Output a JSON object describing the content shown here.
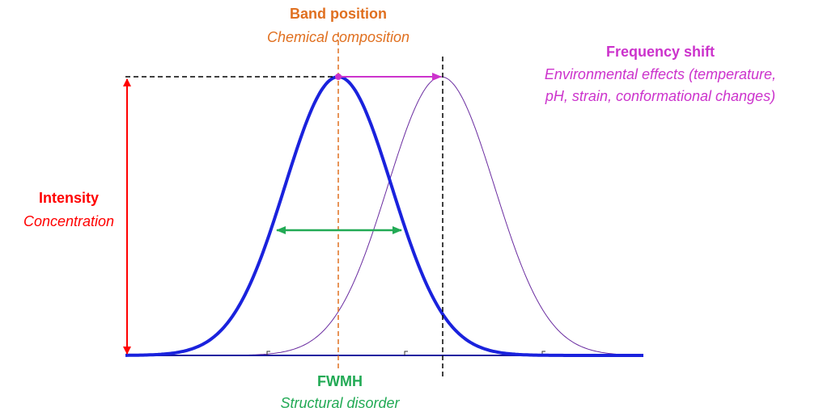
{
  "band_position": {
    "title": "Band position",
    "subtitle": "Chemical composition"
  },
  "frequency_shift": {
    "title": "Frequency shift",
    "lines": [
      "Environmental effects (temperature,",
      "pH, strain, conformational changes)"
    ]
  },
  "intensity": {
    "title": "Intensity",
    "subtitle": "Concentration"
  },
  "fwhm": {
    "title": "FWMH",
    "subtitle": "Structural disorder"
  }
}
